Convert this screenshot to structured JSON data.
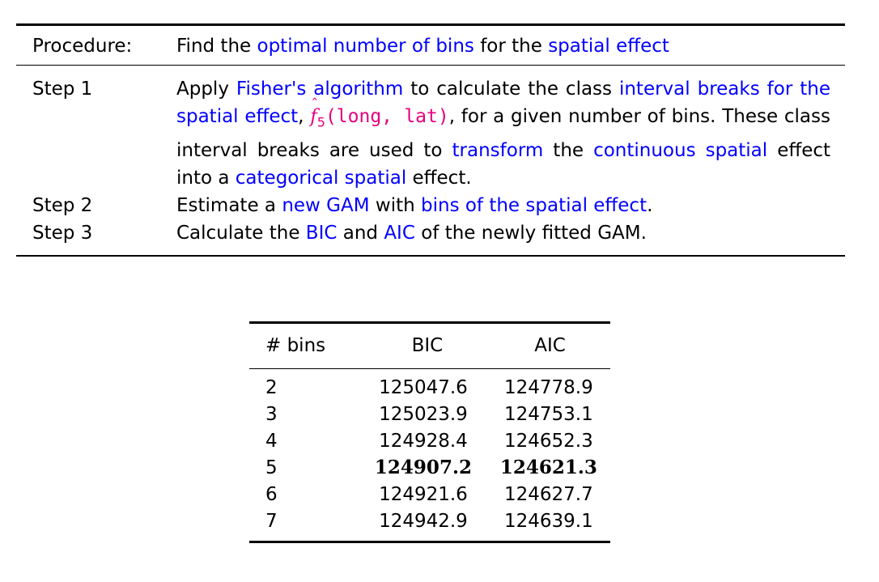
{
  "procedure": {
    "header_label": "Procedure:",
    "header_parts": [
      {
        "text": "Find the ",
        "style": "plain"
      },
      {
        "text": "optimal number of bins",
        "style": "blue"
      },
      {
        "text": " for the ",
        "style": "plain"
      },
      {
        "text": "spatial effect",
        "style": "blue"
      }
    ],
    "steps": [
      {
        "label": "Step 1",
        "parts": [
          {
            "text": "Apply ",
            "style": "plain"
          },
          {
            "text": "Fisher's algorithm",
            "style": "blue"
          },
          {
            "text": " to calculate the class ",
            "style": "plain"
          },
          {
            "text": "interval breaks for the spatial effect",
            "style": "blue"
          },
          {
            "text": ", ",
            "style": "plain"
          },
          {
            "text": "f",
            "style": "fhat"
          },
          {
            "text": "5",
            "style": "sub"
          },
          {
            "text": "(long, lat)",
            "style": "mono"
          },
          {
            "text": ", for a given number of bins. These class interval breaks are used to ",
            "style": "plain"
          },
          {
            "text": "transform",
            "style": "blue"
          },
          {
            "text": " the ",
            "style": "plain"
          },
          {
            "text": "continuous spatial",
            "style": "blue"
          },
          {
            "text": " effect into a ",
            "style": "plain"
          },
          {
            "text": "categorical spatial",
            "style": "blue"
          },
          {
            "text": " effect.",
            "style": "plain"
          }
        ]
      },
      {
        "label": "Step 2",
        "parts": [
          {
            "text": "Estimate a ",
            "style": "plain"
          },
          {
            "text": "new GAM",
            "style": "blue"
          },
          {
            "text": " with ",
            "style": "plain"
          },
          {
            "text": "bins of the spatial effect",
            "style": "blue"
          },
          {
            "text": ".",
            "style": "plain"
          }
        ]
      },
      {
        "label": "Step 3",
        "parts": [
          {
            "text": "Calculate the ",
            "style": "plain"
          },
          {
            "text": "BIC",
            "style": "blue"
          },
          {
            "text": " and ",
            "style": "plain"
          },
          {
            "text": "AIC",
            "style": "blue"
          },
          {
            "text": " of the newly fitted GAM.",
            "style": "plain"
          }
        ]
      }
    ]
  },
  "results": {
    "headers": [
      "# bins",
      "BIC",
      "AIC"
    ],
    "rows": [
      {
        "bins": "2",
        "bic": "125047.6",
        "aic": "124778.9",
        "highlight": false
      },
      {
        "bins": "3",
        "bic": "125023.9",
        "aic": "124753.1",
        "highlight": false
      },
      {
        "bins": "4",
        "bic": "124928.4",
        "aic": "124652.3",
        "highlight": false
      },
      {
        "bins": "5",
        "bic": "124907.2",
        "aic": "124621.3",
        "highlight": true
      },
      {
        "bins": "6",
        "bic": "124921.6",
        "aic": "124627.7",
        "highlight": false
      },
      {
        "bins": "7",
        "bic": "124942.9",
        "aic": "124639.1",
        "highlight": false
      }
    ]
  },
  "colors": {
    "highlight_text": "#0000ff",
    "math_text": "#e6007e",
    "rule": "#000000"
  }
}
